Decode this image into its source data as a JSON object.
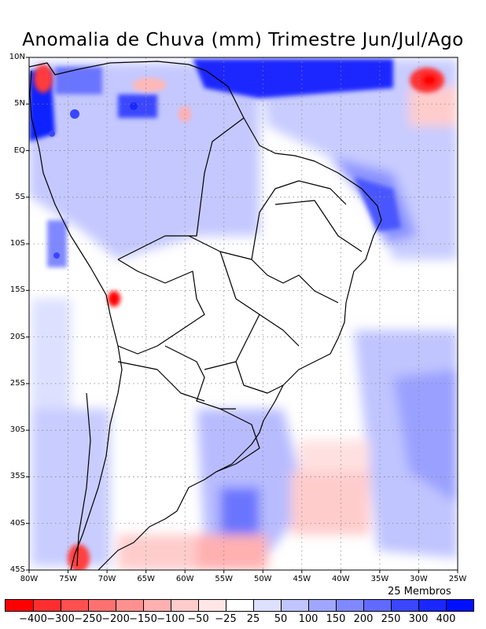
{
  "title": "Anomalia de Chuva (mm) Trimestre Jun/Jul/Ago",
  "map": {
    "region": "South America",
    "lon_range": [
      -80,
      -25
    ],
    "lat_range": [
      -45,
      10
    ],
    "lat_ticks": [
      {
        "value": 10,
        "label": "10N"
      },
      {
        "value": 5,
        "label": "5N"
      },
      {
        "value": 0,
        "label": "EQ"
      },
      {
        "value": -5,
        "label": "5S"
      },
      {
        "value": -10,
        "label": "10S"
      },
      {
        "value": -15,
        "label": "15S"
      },
      {
        "value": -20,
        "label": "20S"
      },
      {
        "value": -25,
        "label": "25S"
      },
      {
        "value": -30,
        "label": "30S"
      },
      {
        "value": -35,
        "label": "35S"
      },
      {
        "value": -40,
        "label": "40S"
      },
      {
        "value": -45,
        "label": "45S"
      }
    ],
    "lon_ticks": [
      {
        "value": -80,
        "label": "80W"
      },
      {
        "value": -75,
        "label": "75W"
      },
      {
        "value": -70,
        "label": "70W"
      },
      {
        "value": -65,
        "label": "65W"
      },
      {
        "value": -60,
        "label": "60W"
      },
      {
        "value": -55,
        "label": "55W"
      },
      {
        "value": -50,
        "label": "50W"
      },
      {
        "value": -45,
        "label": "45W"
      },
      {
        "value": -40,
        "label": "40W"
      },
      {
        "value": -35,
        "label": "35W"
      },
      {
        "value": -30,
        "label": "30W"
      },
      {
        "value": -25,
        "label": "25W"
      }
    ]
  },
  "ensemble_label": "25 Membros",
  "colorbar": {
    "labels": [
      "-400",
      "-300",
      "-250",
      "-200",
      "-150",
      "-100",
      "-50",
      "-25",
      "25",
      "50",
      "100",
      "150",
      "200",
      "250",
      "300",
      "400"
    ],
    "colors": [
      "#ff0000",
      "#ff2e2e",
      "#ff5050",
      "#ff7070",
      "#ff9090",
      "#ffb0b0",
      "#ffcccc",
      "#ffe6e6",
      "#ffffff",
      "#dde0ff",
      "#c0c4ff",
      "#a0a6ff",
      "#8088ff",
      "#606aff",
      "#3a46ff",
      "#1a28ff",
      "#0010ff"
    ]
  }
}
